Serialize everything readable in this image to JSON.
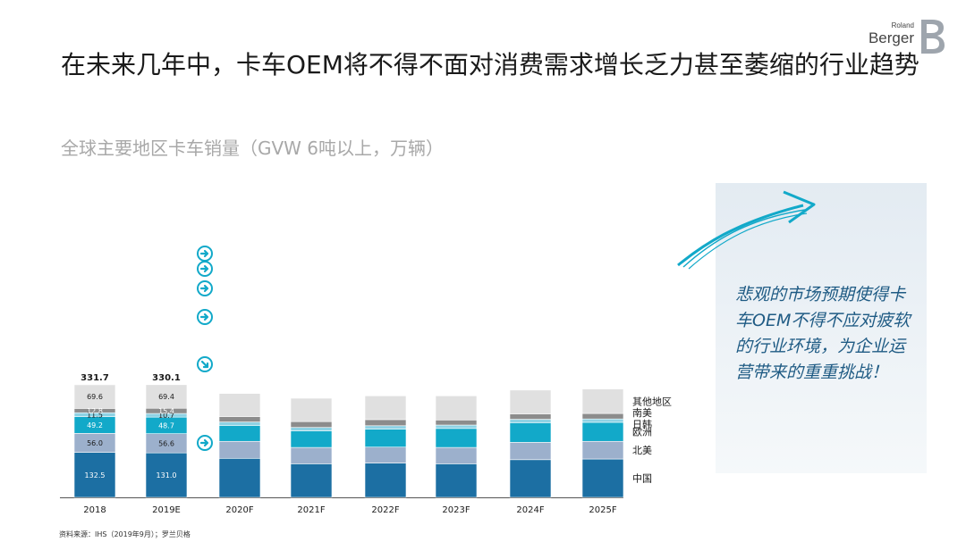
{
  "header": {
    "title": "在未来几年中，卡车OEM将不得不面对消费需求增长乏力甚至萎缩的行业趋势",
    "subtitle": "全球主要地区卡车销量（GVW 6吨以上，万辆）"
  },
  "logo": {
    "line1": "Roland",
    "line2": "Berger"
  },
  "callout": {
    "text": "悲观的市场预期使得卡车OEM不得不应对疲软的行业环境，为企业运营带来的重重挑战！"
  },
  "source": "资料来源：IHS（2019年9月）；罗兰贝格",
  "colors": {
    "china": "#1c6fa3",
    "north_america": "#9cb0cc",
    "europe": "#12a9c9",
    "japan_korea": "#8fd2e4",
    "south_america": "#8c8c8c",
    "others": "#e0e0e0",
    "arrow": "#12a9c9"
  },
  "chart_data": {
    "type": "bar",
    "stacked": true,
    "categories": [
      "2018",
      "2019E",
      "2020F",
      "2021F",
      "2022F",
      "2023F",
      "2024F",
      "2025F"
    ],
    "series": [
      {
        "name": "中国",
        "key": "china",
        "values": [
          132.5,
          131.0,
          115,
          99,
          101,
          99,
          111,
          113
        ]
      },
      {
        "name": "北美",
        "key": "north_america",
        "values": [
          56.0,
          56.6,
          50,
          48,
          47,
          48,
          51,
          52
        ]
      },
      {
        "name": "欧洲",
        "key": "europe",
        "values": [
          49.2,
          48.7,
          47,
          49,
          53,
          56,
          58,
          56
        ]
      },
      {
        "name": "日韩",
        "key": "japan_korea",
        "values": [
          11.5,
          10.7,
          10,
          10,
          10,
          10,
          10,
          10
        ]
      },
      {
        "name": "南美",
        "key": "south_america",
        "values": [
          12.8,
          15.4,
          16,
          17,
          18,
          15,
          16,
          16
        ]
      },
      {
        "name": "其他地区",
        "key": "others",
        "values": [
          69.6,
          69.4,
          68,
          69,
          70,
          71,
          70,
          72
        ]
      }
    ],
    "totals": [
      "331.7",
      "330.1",
      "",
      "",
      "",
      "",
      "",
      ""
    ],
    "labels": [
      [
        "132.5",
        "56.0",
        "49.2",
        "11.5",
        "12.8",
        "69.6"
      ],
      [
        "131.0",
        "56.6",
        "48.7",
        "10.7",
        "15.4",
        "69.4"
      ]
    ],
    "trend_arrows": [
      "right",
      "right",
      "right",
      "right",
      "down-right",
      "right"
    ],
    "ylim": [
      0,
      340
    ],
    "legend": "right",
    "grid": false
  }
}
